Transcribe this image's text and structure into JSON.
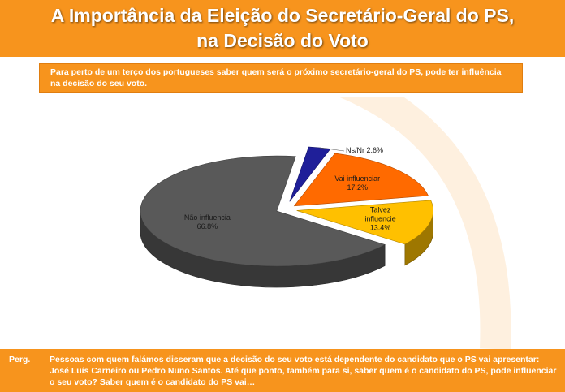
{
  "header": {
    "title_line1": "A Importância da Eleição do Secretário-Geral do PS,",
    "title_line2": "na Decisão do Voto"
  },
  "subtitle": "Para perto de um terço dos portugueses saber quem será o próximo secretário-geral do PS, pode ter influência na decisão do seu voto.",
  "question": {
    "label": "Perg. –",
    "text": "Pessoas com quem falámos disseram que a decisão do seu voto está dependente do candidato que o PS vai apresentar: José Luís Carneiro ou Pedro Nuno Santos. Até que ponto, também para si, saber quem é o candidato do PS, pode influenciar o seu voto? Saber quem é o candidato do PS vai…"
  },
  "colors": {
    "accent": "#f7941d",
    "nao_influencia": "#595959",
    "vai_influenciar": "#ff6a00",
    "talvez_influencie": "#ffc000",
    "ns_nr": "#1f1f99"
  },
  "chart_data": {
    "type": "pie",
    "style": "3d-exploded",
    "slices": [
      {
        "label": "Ns/Nr",
        "value": 2.6,
        "value_text": "2.6%"
      },
      {
        "label": "Vai influenciar",
        "value": 17.2,
        "value_text": "17.2%"
      },
      {
        "label": "Talvez influencie",
        "value": 13.4,
        "value_text": "13.4%"
      },
      {
        "label": "Não influencia",
        "value": 66.8,
        "value_text": "66.8%"
      }
    ]
  }
}
